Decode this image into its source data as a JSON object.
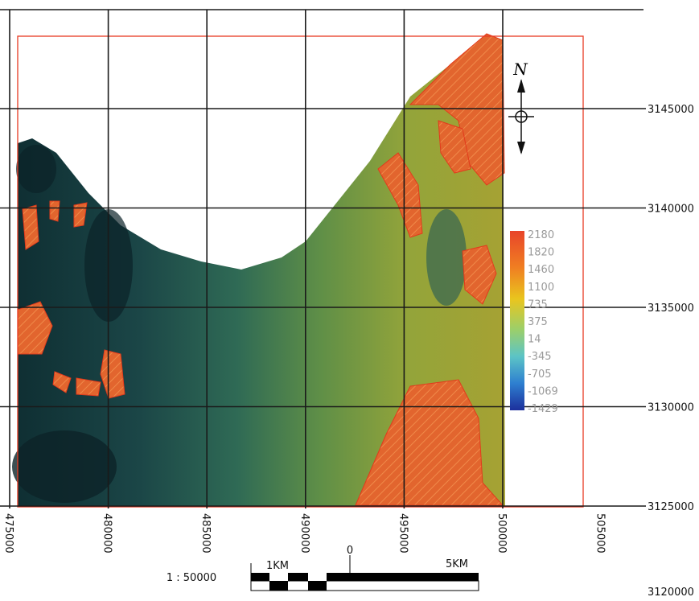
{
  "map": {
    "x_labels": [
      "475000",
      "480000",
      "485000",
      "490000",
      "495000",
      "500000",
      "505000"
    ],
    "y_labels": [
      "3145000",
      "3140000",
      "3135000",
      "3130000",
      "3125000",
      "3120000"
    ],
    "legend": {
      "values": [
        "2180",
        "1820",
        "1460",
        "1100",
        "735",
        "375",
        "14",
        "-345",
        "-705",
        "-1069",
        "-1429"
      ]
    },
    "scale": {
      "ratio": "1 : 50000",
      "left": "1KM",
      "zero": "0",
      "right": "5KM"
    },
    "north": "N"
  }
}
